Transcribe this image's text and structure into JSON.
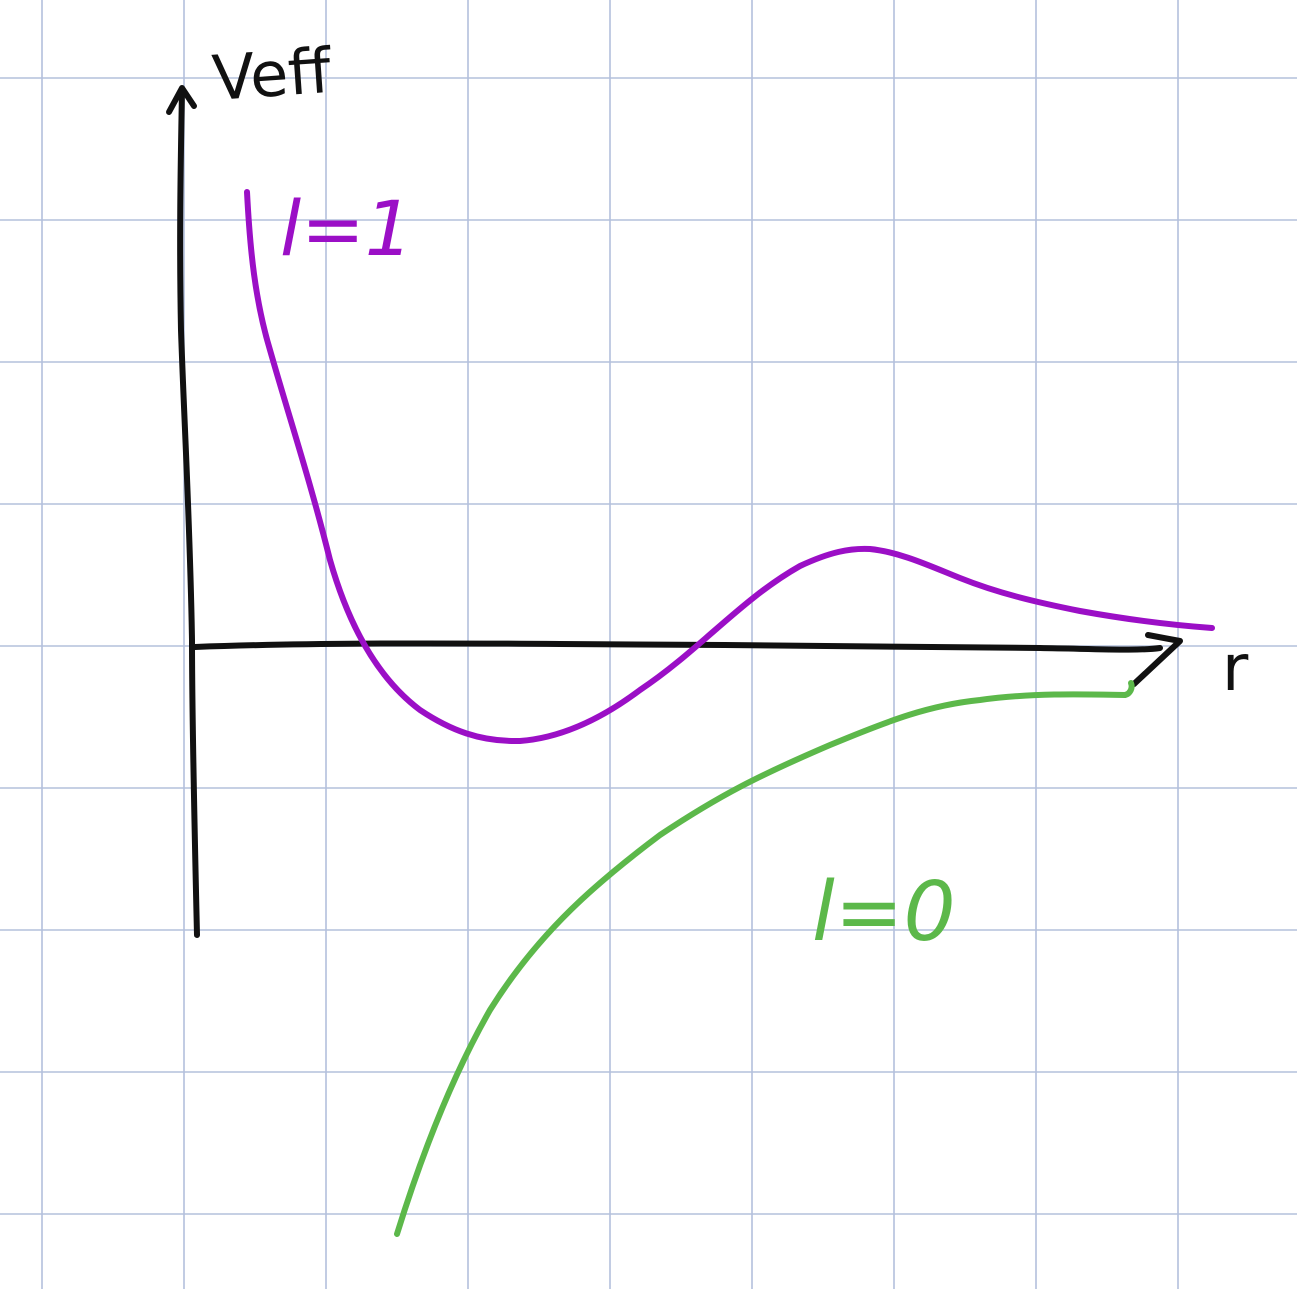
{
  "axes": {
    "y_label": "Veff",
    "x_label": "r"
  },
  "curves": [
    {
      "id": "l1",
      "label": "l=1",
      "color": "#9b0fc6"
    },
    {
      "id": "l0",
      "label": "l=0",
      "color": "#5cb84a"
    }
  ],
  "colors": {
    "grid": "#b3c0dc",
    "axis": "#111111",
    "background": "#ffffff"
  }
}
